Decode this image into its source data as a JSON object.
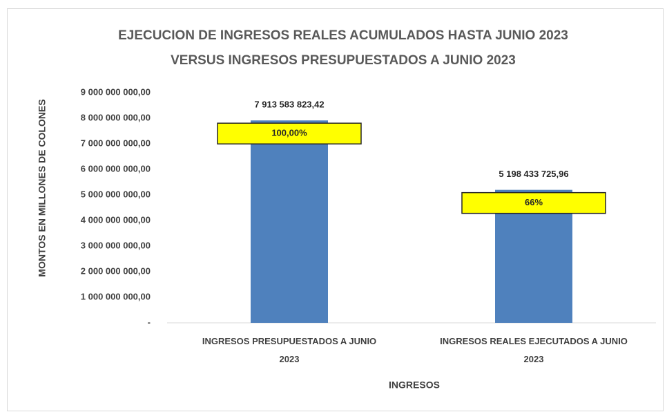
{
  "chart_data": {
    "type": "bar",
    "title": [
      "EJECUCION DE INGRESOS REALES ACUMULADOS HASTA JUNIO 2023",
      "VERSUS INGRESOS PRESUPUESTADOS  A JUNIO 2023"
    ],
    "x_label": "INGRESOS",
    "y_label": "MONTOS EN  MILLONES  DE COLONES",
    "categories": [
      "INGRESOS PRESUPUESTADOS  A JUNIO 2023",
      "INGRESOS REALES EJECUTADOS A JUNIO 2023"
    ],
    "values": [
      7913583823.42,
      5198433725.96
    ],
    "value_labels": [
      "7 913 583 823,42",
      "5 198 433 725,96"
    ],
    "annotations": [
      "100,00%",
      "66%"
    ],
    "color": "#4f81bd",
    "annotation_color": "#ffff00",
    "ylim": [
      0,
      9000000000
    ],
    "yticks": [
      {
        "value": 0,
        "label": "-"
      },
      {
        "value": 1000000000,
        "label": "1 000 000 000,00"
      },
      {
        "value": 2000000000,
        "label": "2 000 000 000,00"
      },
      {
        "value": 3000000000,
        "label": "3 000 000 000,00"
      },
      {
        "value": 4000000000,
        "label": "4 000 000 000,00"
      },
      {
        "value": 5000000000,
        "label": "5 000 000 000,00"
      },
      {
        "value": 6000000000,
        "label": "6 000 000 000,00"
      },
      {
        "value": 7000000000,
        "label": "7 000 000 000,00"
      },
      {
        "value": 8000000000,
        "label": "8 000 000 000,00"
      },
      {
        "value": 9000000000,
        "label": "9 000 000 000,00"
      }
    ],
    "grid": false
  }
}
